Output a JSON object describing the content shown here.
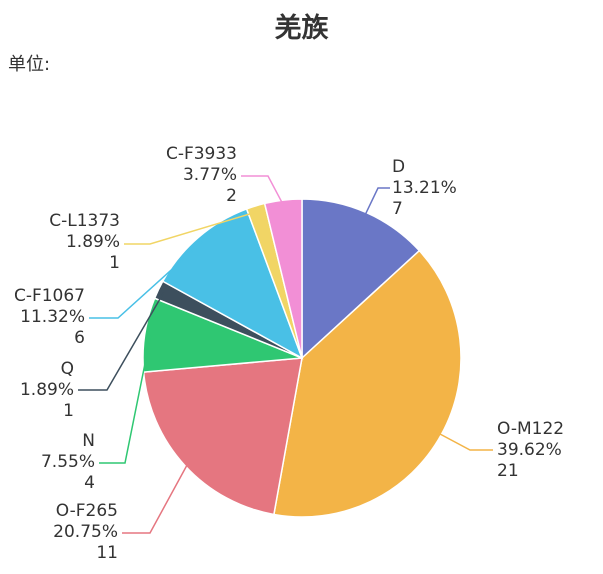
{
  "chart_data": {
    "type": "pie",
    "title": "羌族",
    "subtitle": "单位:",
    "start_angle": "top, clockwise",
    "slices": [
      {
        "name": "D",
        "percent": "13.21%",
        "value": 7,
        "color": "#6a77c6"
      },
      {
        "name": "O-M122",
        "percent": "39.62%",
        "value": 21,
        "color": "#f3b447"
      },
      {
        "name": "O-F265",
        "percent": "20.75%",
        "value": 11,
        "color": "#e57680"
      },
      {
        "name": "N",
        "percent": "7.55%",
        "value": 4,
        "color": "#2fc772"
      },
      {
        "name": "Q",
        "percent": "1.89%",
        "value": 1,
        "color": "#3d4f5d"
      },
      {
        "name": "C-F1067",
        "percent": "11.32%",
        "value": 6,
        "color": "#49c0e6"
      },
      {
        "name": "C-L1373",
        "percent": "1.89%",
        "value": 1,
        "color": "#f1d565"
      },
      {
        "name": "C-F3933",
        "percent": "3.77%",
        "value": 2,
        "color": "#f28fd6"
      }
    ]
  }
}
